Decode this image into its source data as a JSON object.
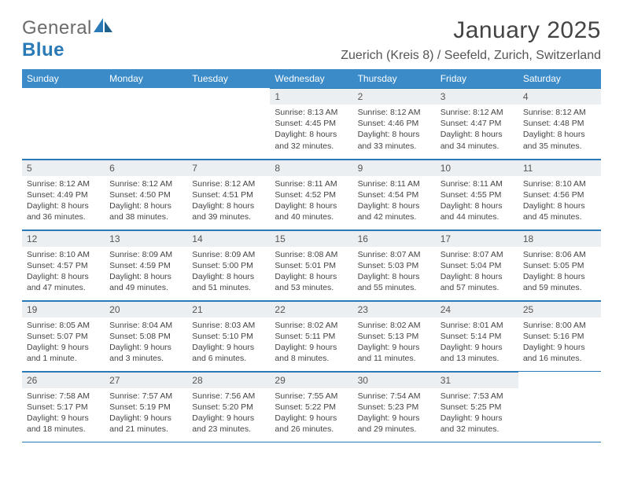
{
  "logo": {
    "general": "General",
    "blue": "Blue"
  },
  "title": "January 2025",
  "location": "Zuerich (Kreis 8) / Seefeld, Zurich, Switzerland",
  "colors": {
    "header_bg": "#3b8bc8",
    "header_text": "#ffffff",
    "daynum_bg": "#eceff1",
    "border": "#2a7ab8",
    "logo_general": "#6b6b6b",
    "logo_blue": "#2a7ab8"
  },
  "weekdays": [
    "Sunday",
    "Monday",
    "Tuesday",
    "Wednesday",
    "Thursday",
    "Friday",
    "Saturday"
  ],
  "weeks": [
    [
      {
        "day": "",
        "sunrise": "",
        "sunset": "",
        "daylight": ""
      },
      {
        "day": "",
        "sunrise": "",
        "sunset": "",
        "daylight": ""
      },
      {
        "day": "",
        "sunrise": "",
        "sunset": "",
        "daylight": ""
      },
      {
        "day": "1",
        "sunrise": "Sunrise: 8:13 AM",
        "sunset": "Sunset: 4:45 PM",
        "daylight": "Daylight: 8 hours and 32 minutes."
      },
      {
        "day": "2",
        "sunrise": "Sunrise: 8:12 AM",
        "sunset": "Sunset: 4:46 PM",
        "daylight": "Daylight: 8 hours and 33 minutes."
      },
      {
        "day": "3",
        "sunrise": "Sunrise: 8:12 AM",
        "sunset": "Sunset: 4:47 PM",
        "daylight": "Daylight: 8 hours and 34 minutes."
      },
      {
        "day": "4",
        "sunrise": "Sunrise: 8:12 AM",
        "sunset": "Sunset: 4:48 PM",
        "daylight": "Daylight: 8 hours and 35 minutes."
      }
    ],
    [
      {
        "day": "5",
        "sunrise": "Sunrise: 8:12 AM",
        "sunset": "Sunset: 4:49 PM",
        "daylight": "Daylight: 8 hours and 36 minutes."
      },
      {
        "day": "6",
        "sunrise": "Sunrise: 8:12 AM",
        "sunset": "Sunset: 4:50 PM",
        "daylight": "Daylight: 8 hours and 38 minutes."
      },
      {
        "day": "7",
        "sunrise": "Sunrise: 8:12 AM",
        "sunset": "Sunset: 4:51 PM",
        "daylight": "Daylight: 8 hours and 39 minutes."
      },
      {
        "day": "8",
        "sunrise": "Sunrise: 8:11 AM",
        "sunset": "Sunset: 4:52 PM",
        "daylight": "Daylight: 8 hours and 40 minutes."
      },
      {
        "day": "9",
        "sunrise": "Sunrise: 8:11 AM",
        "sunset": "Sunset: 4:54 PM",
        "daylight": "Daylight: 8 hours and 42 minutes."
      },
      {
        "day": "10",
        "sunrise": "Sunrise: 8:11 AM",
        "sunset": "Sunset: 4:55 PM",
        "daylight": "Daylight: 8 hours and 44 minutes."
      },
      {
        "day": "11",
        "sunrise": "Sunrise: 8:10 AM",
        "sunset": "Sunset: 4:56 PM",
        "daylight": "Daylight: 8 hours and 45 minutes."
      }
    ],
    [
      {
        "day": "12",
        "sunrise": "Sunrise: 8:10 AM",
        "sunset": "Sunset: 4:57 PM",
        "daylight": "Daylight: 8 hours and 47 minutes."
      },
      {
        "day": "13",
        "sunrise": "Sunrise: 8:09 AM",
        "sunset": "Sunset: 4:59 PM",
        "daylight": "Daylight: 8 hours and 49 minutes."
      },
      {
        "day": "14",
        "sunrise": "Sunrise: 8:09 AM",
        "sunset": "Sunset: 5:00 PM",
        "daylight": "Daylight: 8 hours and 51 minutes."
      },
      {
        "day": "15",
        "sunrise": "Sunrise: 8:08 AM",
        "sunset": "Sunset: 5:01 PM",
        "daylight": "Daylight: 8 hours and 53 minutes."
      },
      {
        "day": "16",
        "sunrise": "Sunrise: 8:07 AM",
        "sunset": "Sunset: 5:03 PM",
        "daylight": "Daylight: 8 hours and 55 minutes."
      },
      {
        "day": "17",
        "sunrise": "Sunrise: 8:07 AM",
        "sunset": "Sunset: 5:04 PM",
        "daylight": "Daylight: 8 hours and 57 minutes."
      },
      {
        "day": "18",
        "sunrise": "Sunrise: 8:06 AM",
        "sunset": "Sunset: 5:05 PM",
        "daylight": "Daylight: 8 hours and 59 minutes."
      }
    ],
    [
      {
        "day": "19",
        "sunrise": "Sunrise: 8:05 AM",
        "sunset": "Sunset: 5:07 PM",
        "daylight": "Daylight: 9 hours and 1 minute."
      },
      {
        "day": "20",
        "sunrise": "Sunrise: 8:04 AM",
        "sunset": "Sunset: 5:08 PM",
        "daylight": "Daylight: 9 hours and 3 minutes."
      },
      {
        "day": "21",
        "sunrise": "Sunrise: 8:03 AM",
        "sunset": "Sunset: 5:10 PM",
        "daylight": "Daylight: 9 hours and 6 minutes."
      },
      {
        "day": "22",
        "sunrise": "Sunrise: 8:02 AM",
        "sunset": "Sunset: 5:11 PM",
        "daylight": "Daylight: 9 hours and 8 minutes."
      },
      {
        "day": "23",
        "sunrise": "Sunrise: 8:02 AM",
        "sunset": "Sunset: 5:13 PM",
        "daylight": "Daylight: 9 hours and 11 minutes."
      },
      {
        "day": "24",
        "sunrise": "Sunrise: 8:01 AM",
        "sunset": "Sunset: 5:14 PM",
        "daylight": "Daylight: 9 hours and 13 minutes."
      },
      {
        "day": "25",
        "sunrise": "Sunrise: 8:00 AM",
        "sunset": "Sunset: 5:16 PM",
        "daylight": "Daylight: 9 hours and 16 minutes."
      }
    ],
    [
      {
        "day": "26",
        "sunrise": "Sunrise: 7:58 AM",
        "sunset": "Sunset: 5:17 PM",
        "daylight": "Daylight: 9 hours and 18 minutes."
      },
      {
        "day": "27",
        "sunrise": "Sunrise: 7:57 AM",
        "sunset": "Sunset: 5:19 PM",
        "daylight": "Daylight: 9 hours and 21 minutes."
      },
      {
        "day": "28",
        "sunrise": "Sunrise: 7:56 AM",
        "sunset": "Sunset: 5:20 PM",
        "daylight": "Daylight: 9 hours and 23 minutes."
      },
      {
        "day": "29",
        "sunrise": "Sunrise: 7:55 AM",
        "sunset": "Sunset: 5:22 PM",
        "daylight": "Daylight: 9 hours and 26 minutes."
      },
      {
        "day": "30",
        "sunrise": "Sunrise: 7:54 AM",
        "sunset": "Sunset: 5:23 PM",
        "daylight": "Daylight: 9 hours and 29 minutes."
      },
      {
        "day": "31",
        "sunrise": "Sunrise: 7:53 AM",
        "sunset": "Sunset: 5:25 PM",
        "daylight": "Daylight: 9 hours and 32 minutes."
      },
      {
        "day": "",
        "sunrise": "",
        "sunset": "",
        "daylight": ""
      }
    ]
  ]
}
